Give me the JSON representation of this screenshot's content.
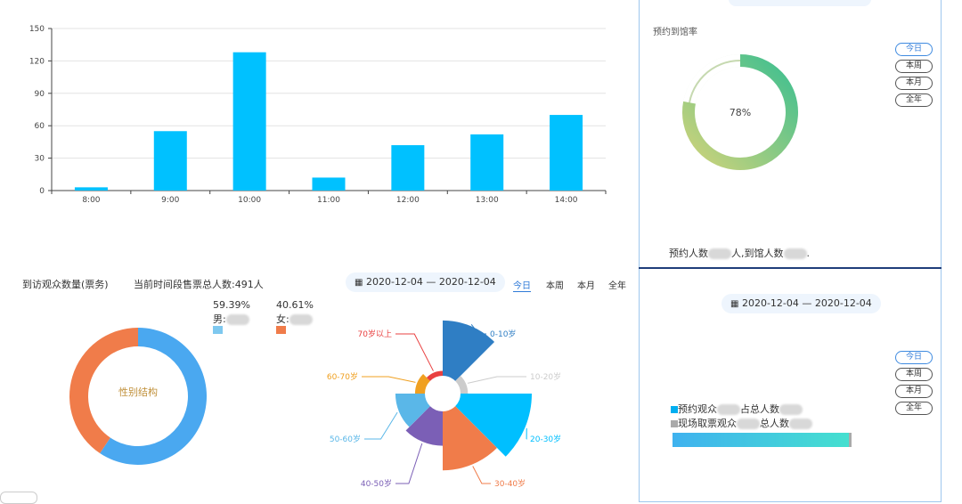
{
  "chart_data": [
    {
      "type": "bar",
      "categories": [
        "8:00",
        "9:00",
        "10:00",
        "11:00",
        "12:00",
        "13:00",
        "14:00"
      ],
      "values": [
        3,
        55,
        128,
        12,
        42,
        52,
        70
      ],
      "ylim": [
        0,
        150
      ],
      "yticks": [
        0,
        30,
        60,
        90,
        120,
        150
      ],
      "color": "#00c1ff",
      "grid": true
    },
    {
      "type": "pie",
      "center_label": "性别结构",
      "slices": [
        {
          "name": "男",
          "value": 59.39,
          "color": "#4aa8f0"
        },
        {
          "name": "女",
          "value": 40.61,
          "color": "#f07c4a"
        }
      ]
    },
    {
      "type": "pie",
      "variant": "rose",
      "slices": [
        {
          "name": "0-10岁",
          "value": 45,
          "color": "#2f7ec4"
        },
        {
          "name": "10-20岁",
          "value": 6,
          "color": "#cccccc"
        },
        {
          "name": "20-30岁",
          "value": 58,
          "color": "#00bfff"
        },
        {
          "name": "30-40岁",
          "value": 48,
          "color": "#f07c4a"
        },
        {
          "name": "40-50岁",
          "value": 28,
          "color": "#7b5fb6"
        },
        {
          "name": "50-60岁",
          "value": 24,
          "color": "#5ab7e8"
        },
        {
          "name": "60-70岁",
          "value": 8,
          "color": "#f0a020"
        },
        {
          "name": "70岁以上",
          "value": 4,
          "color": "#e94040"
        }
      ]
    },
    {
      "type": "pie",
      "variant": "gauge-ring",
      "value": 78,
      "label": "78%"
    }
  ],
  "visitors": {
    "title": "到访观众数量(票务)",
    "total_label": "当前时间段售票总人数:491人",
    "date_range": "2020-12-04 — 2020-12-04",
    "tabs": [
      "今日",
      "本周",
      "本月",
      "全年"
    ],
    "male_pct": "59.39%",
    "male_label": "男:",
    "female_pct": "40.61%",
    "female_label": "女:"
  },
  "reservation": {
    "title": "预约到馆率",
    "percent": "78%",
    "footer_a": "预约人数",
    "footer_b": "人,到馆人数",
    "buttons": [
      "今日",
      "本周",
      "本月",
      "全年"
    ]
  },
  "ticket_panel": {
    "date_range": "2020-12-04 — 2020-12-04",
    "buttons": [
      "今日",
      "本周",
      "本月",
      "全年"
    ],
    "legend_reserved": "预约观众",
    "legend_reserved_tail": "占总人数",
    "legend_onsite": "现场取票观众",
    "legend_onsite_tail": "总人数",
    "color_reserved": "#00aef0",
    "color_onsite": "#aaaaaa"
  }
}
